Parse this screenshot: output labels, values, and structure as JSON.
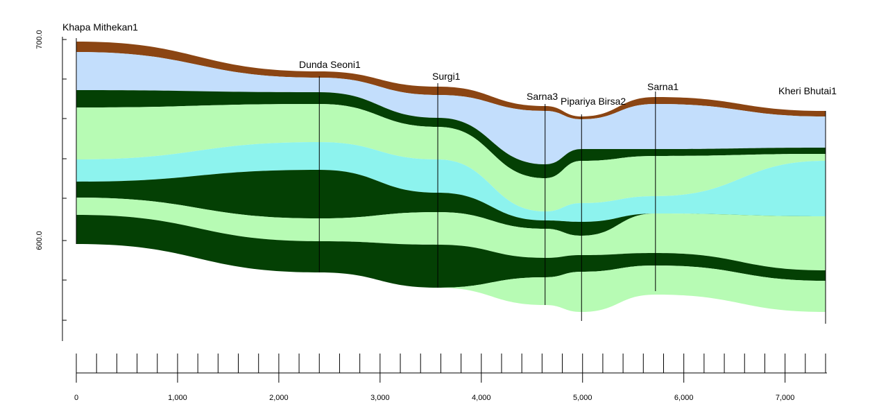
{
  "wells": [
    {
      "name": "Khapa Mithekan1",
      "x": 0
    },
    {
      "name": "Dunda Seoni1",
      "x": 2400
    },
    {
      "name": "Surgi1",
      "x": 3570
    },
    {
      "name": "Sarna3",
      "x": 4630
    },
    {
      "name": "Pipariya Birsa2",
      "x": 4990
    },
    {
      "name": "Sarna1",
      "x": 5720
    },
    {
      "name": "Kheri Bhutai1",
      "x": 7400
    }
  ],
  "x_axis": {
    "tick_labels": [
      "0",
      "1,000",
      "2,000",
      "3,000",
      "4,000",
      "5,000",
      "6,000",
      "7,000"
    ],
    "tick_values": [
      0,
      1000,
      2000,
      3000,
      4000,
      5000,
      6000,
      7000
    ],
    "range": [
      0,
      7400
    ]
  },
  "y_axis": {
    "tick_labels": [
      "700.0",
      "600.0"
    ],
    "tick_values": [
      700,
      600
    ],
    "range": [
      550,
      700
    ]
  },
  "layer_colors": [
    "#8B4513",
    "#C3DEFC",
    "#044004",
    "#B7FBB4",
    "#8DF3EE",
    "#044004",
    "#B7FBB4",
    "#044004",
    "#B7FBB4",
    "#044004"
  ]
}
